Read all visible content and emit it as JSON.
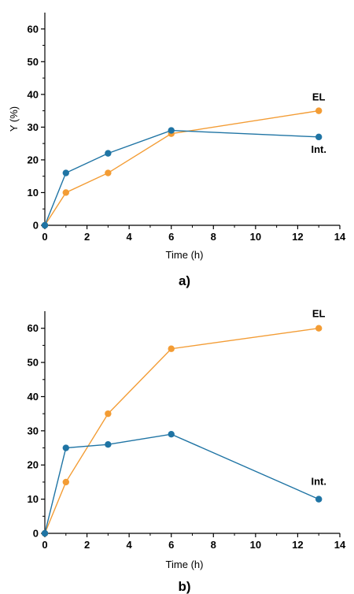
{
  "colors": {
    "EL": "#f39c34",
    "Int": "#1f74a4",
    "axis": "#000000"
  },
  "chart_data": [
    {
      "type": "line",
      "panel_label": "a)",
      "xlabel": "Time (h)",
      "ylabel": "Y (%)",
      "xlim": [
        0,
        14
      ],
      "ylim": [
        0,
        65
      ],
      "xticks": [
        0,
        2,
        4,
        6,
        8,
        10,
        12,
        14
      ],
      "yticks": [
        0,
        10,
        20,
        30,
        40,
        50,
        60
      ],
      "grid": false,
      "series": [
        {
          "name": "EL",
          "color_key": "EL",
          "x": [
            0,
            1,
            3,
            6,
            13
          ],
          "y": [
            0,
            10,
            16,
            28,
            35
          ]
        },
        {
          "name": "Int.",
          "color_key": "Int",
          "x": [
            0,
            1,
            3,
            6,
            13
          ],
          "y": [
            0,
            16,
            22,
            29,
            27
          ]
        }
      ]
    },
    {
      "type": "line",
      "panel_label": "b)",
      "xlabel": "Time (h)",
      "ylabel": "",
      "xlim": [
        0,
        14
      ],
      "ylim": [
        0,
        65
      ],
      "xticks": [
        0,
        2,
        4,
        6,
        8,
        10,
        12,
        14
      ],
      "yticks": [
        0,
        10,
        20,
        30,
        40,
        50,
        60
      ],
      "grid": false,
      "series": [
        {
          "name": "EL",
          "color_key": "EL",
          "x": [
            0,
            1,
            3,
            6,
            13
          ],
          "y": [
            0,
            15,
            35,
            54,
            60
          ]
        },
        {
          "name": "Int.",
          "color_key": "Int",
          "x": [
            0,
            1,
            3,
            6,
            13
          ],
          "y": [
            0,
            25,
            26,
            29,
            10
          ]
        }
      ]
    }
  ]
}
